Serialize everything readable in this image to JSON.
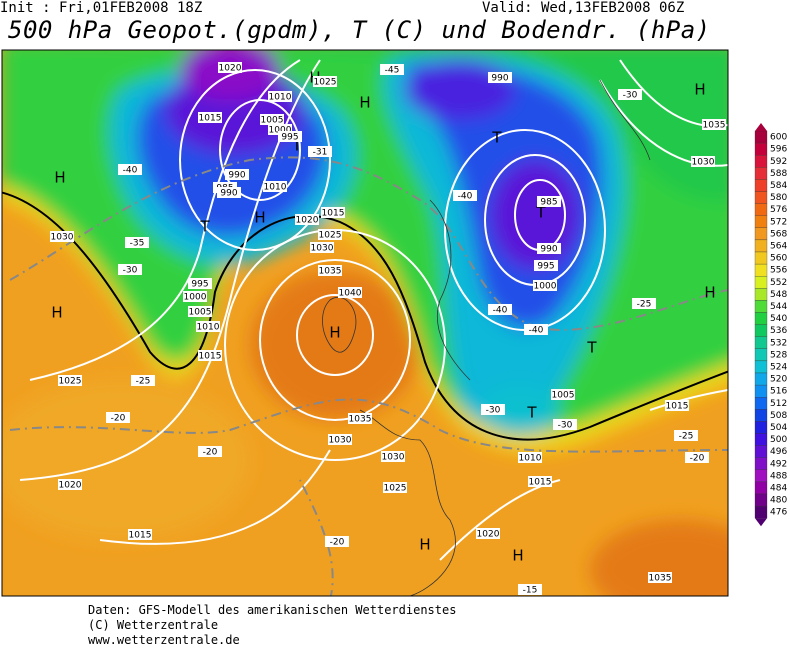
{
  "header": {
    "init": "Init : Fri,01FEB2008 18Z",
    "valid": "Valid: Wed,13FEB2008 06Z",
    "title": "500 hPa Geopot.(gpdm), T (C) und Bodendr. (hPa)"
  },
  "pressure_centers": [
    "H",
    "H",
    "H",
    "H",
    "H",
    "H",
    "H",
    "H",
    "H",
    "H",
    "T",
    "T",
    "T",
    "T",
    "T",
    "T"
  ],
  "isobar_labels": [
    1020,
    1025,
    1010,
    1015,
    1005,
    1000,
    995,
    990,
    990,
    985,
    990,
    1010,
    1020,
    1015,
    1025,
    1030,
    1035,
    1040,
    1030,
    995,
    1000,
    1005,
    1010,
    1015,
    1025,
    1035,
    1030,
    1030,
    1025,
    1020,
    1015,
    1020,
    1015,
    1010,
    1005,
    1000,
    995,
    990,
    985,
    1035,
    1030,
    1015,
    1035
  ],
  "temperature_labels": [
    -45,
    -30,
    -40,
    -35,
    -30,
    -25,
    -20,
    -20,
    -20,
    -40,
    -40,
    -40,
    -25,
    -25,
    -20,
    -30,
    -30,
    -15,
    -31
  ],
  "colorbar": {
    "ticks": [
      600,
      596,
      592,
      588,
      584,
      580,
      576,
      572,
      568,
      564,
      560,
      556,
      552,
      548,
      544,
      540,
      536,
      532,
      528,
      524,
      520,
      516,
      512,
      508,
      504,
      500,
      496,
      492,
      488,
      484,
      480,
      476
    ],
    "colors": [
      "#a8003c",
      "#c4003c",
      "#d8143c",
      "#e62e38",
      "#ee4028",
      "#f05420",
      "#f06a14",
      "#f08010",
      "#f09820",
      "#f0b020",
      "#f0c820",
      "#f0e020",
      "#d8f020",
      "#a8e828",
      "#50dc38",
      "#20d040",
      "#10c860",
      "#10c890",
      "#10c8b4",
      "#10c0d4",
      "#10a8e8",
      "#1090f0",
      "#1068f0",
      "#1044e4",
      "#2020e0",
      "#4010e0",
      "#6010d4",
      "#8010c8",
      "#a010c0",
      "#9000a4",
      "#70008a",
      "#500070"
    ]
  },
  "footer": [
    "Daten: GFS-Modell des amerikanischen Wetterdienstes",
    "(C) Wetterzentrale",
    "www.wetterzentrale.de"
  ]
}
